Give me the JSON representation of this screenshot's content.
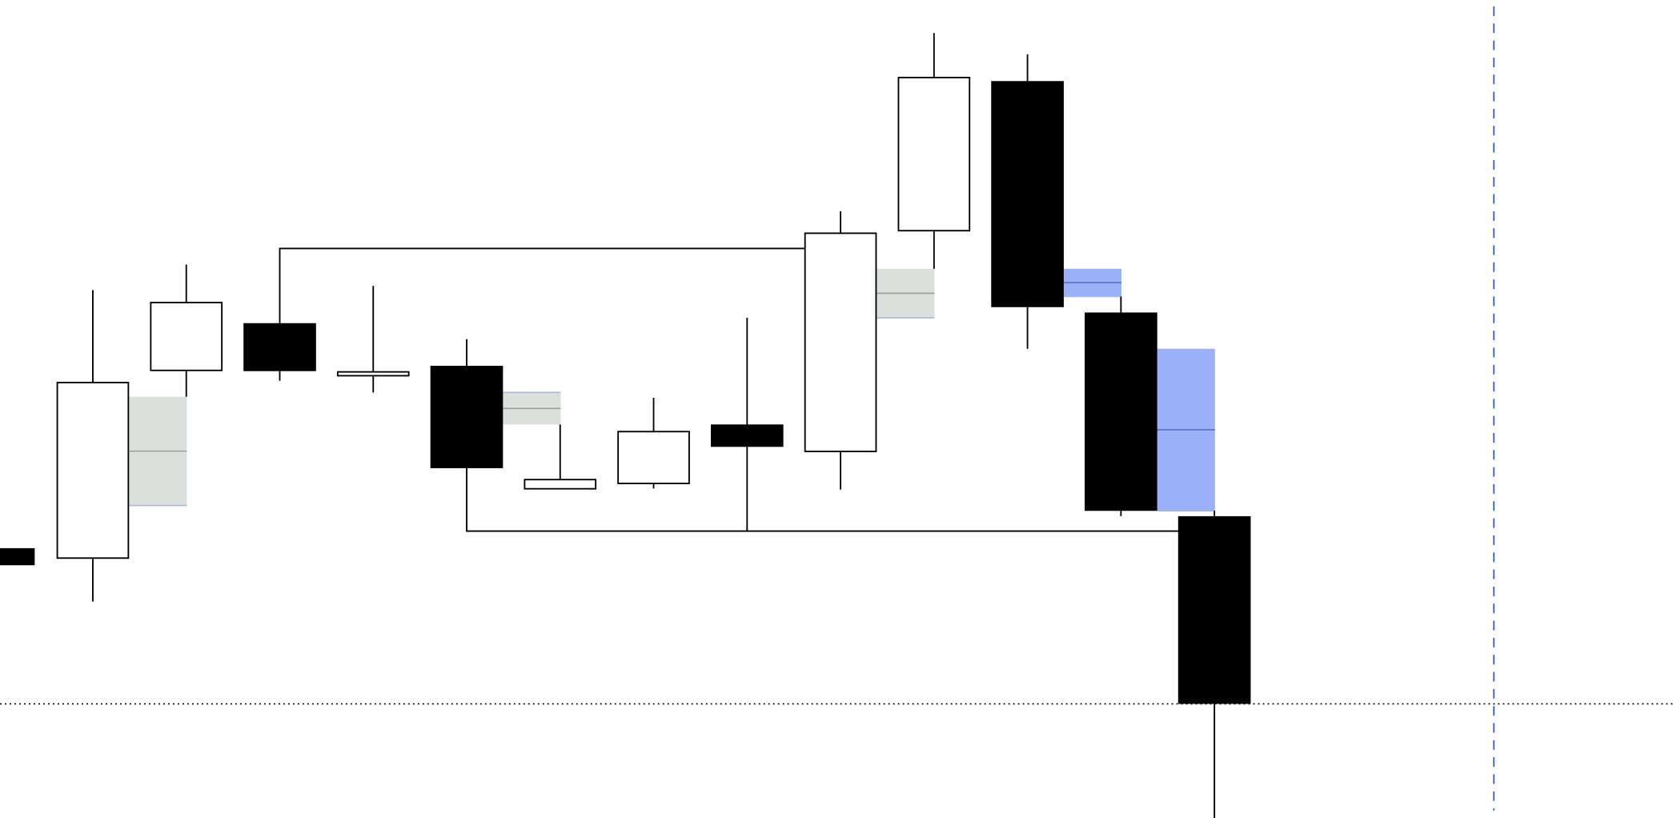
{
  "chart_data": {
    "type": "candlestick",
    "title": "",
    "xlabel": "",
    "ylabel": "",
    "grid": false,
    "ylim": [
      0,
      767
    ],
    "colors": {
      "bull_fill": "#ffffff",
      "bear_fill": "#000000",
      "outline": "#000000",
      "gap_neutral": "#dce0dc",
      "gap_neutral_mid": "#9a9e9a",
      "gap_blue": "#9ab0f8",
      "gap_blue_mid": "#5a70c0",
      "gap_edge": "#a8b8dc",
      "cursor_line": "#3a5ef0"
    },
    "candles": [
      {
        "i": -0.01,
        "open": 253,
        "high": 253,
        "low": 237,
        "close": 237
      },
      {
        "i": 1,
        "open": 243,
        "high": 495,
        "low": 203,
        "close": 409
      },
      {
        "i": 2,
        "open": 419,
        "high": 519,
        "low": 395,
        "close": 484
      },
      {
        "i": 3,
        "open": 464,
        "high": 464,
        "low": 410,
        "close": 419
      },
      {
        "i": 4,
        "open": 414,
        "high": 499,
        "low": 399,
        "close": 419
      },
      {
        "i": 5,
        "open": 424,
        "high": 449,
        "low": 328,
        "close": 328
      },
      {
        "i": 6,
        "open": 308,
        "high": 369,
        "low": 308,
        "close": 318
      },
      {
        "i": 7,
        "open": 313,
        "high": 394,
        "low": 309,
        "close": 363
      },
      {
        "i": 8,
        "open": 369,
        "high": 469,
        "low": 269,
        "close": 348
      },
      {
        "i": 9,
        "open": 343,
        "high": 569,
        "low": 308,
        "close": 549
      },
      {
        "i": 10,
        "open": 550,
        "high": 736,
        "low": 515,
        "close": 695
      },
      {
        "i": 11,
        "open": 691,
        "high": 716,
        "low": 440,
        "close": 479
      },
      {
        "i": 12,
        "open": 474,
        "high": 489,
        "low": 283,
        "close": 288
      },
      {
        "i": 13,
        "open": 283,
        "high": 288,
        "low": 0,
        "close": 107
      }
    ],
    "gaps": [
      {
        "from": 1,
        "top": 395,
        "bottom": 293,
        "style": "neutral",
        "edge": "bottom"
      },
      {
        "from": 5,
        "top": 399,
        "bottom": 369,
        "style": "neutral",
        "edge": "top"
      },
      {
        "from": 9,
        "top": 515,
        "bottom": 469,
        "style": "neutral",
        "edge": "bottom"
      },
      {
        "from": 11,
        "top": 515,
        "bottom": 489,
        "style": "blue",
        "edge": "bottom"
      },
      {
        "from": 12,
        "top": 440,
        "bottom": 288,
        "style": "blue",
        "edge": "bottom"
      }
    ],
    "levels": [
      {
        "value": 534,
        "from": 3,
        "to": 9,
        "anchor": 464
      },
      {
        "value": 269,
        "from": 5,
        "to": 12.8,
        "anchor": 328
      }
    ],
    "price_line": 107,
    "cursor_index": 15.99
  }
}
